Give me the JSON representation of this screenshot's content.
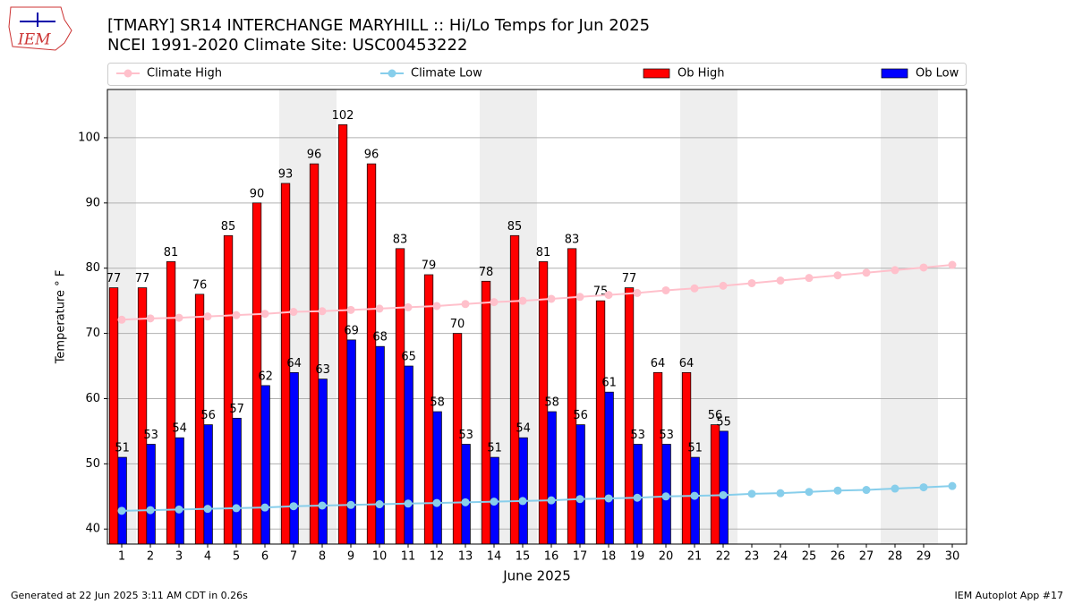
{
  "logo_text": "IEM",
  "chart_data": {
    "type": "bar",
    "title": "[TMARY] SR14 INTERCHANGE MARYHILL  :: Hi/Lo Temps for Jun 2025",
    "subtitle": "NCEI 1991-2020 Climate Site: USC00453222",
    "x_label": "June 2025",
    "y_label": "Temperature ° F",
    "footer_left": "Generated at 22 Jun 2025 3:11 AM CDT in 0.26s",
    "footer_right": "IEM Autoplot App #17",
    "x": [
      1,
      2,
      3,
      4,
      5,
      6,
      7,
      8,
      9,
      10,
      11,
      12,
      13,
      14,
      15,
      16,
      17,
      18,
      19,
      20,
      21,
      22,
      23,
      24,
      25,
      26,
      27,
      28,
      29,
      30
    ],
    "xlim": [
      0.5,
      30.5
    ],
    "xticks": [
      1,
      2,
      3,
      4,
      5,
      6,
      7,
      8,
      9,
      10,
      11,
      12,
      13,
      14,
      15,
      16,
      17,
      18,
      19,
      20,
      21,
      22,
      23,
      24,
      25,
      26,
      27,
      28,
      29,
      30
    ],
    "ylim": [
      37.7,
      107.4
    ],
    "yticks": [
      40,
      50,
      60,
      70,
      80,
      90,
      100
    ],
    "grid": true,
    "legend": "top",
    "shaded_days": [
      1,
      7,
      8,
      14,
      15,
      21,
      22,
      28,
      29
    ],
    "shade_color": "#eeeeee",
    "series": [
      {
        "name": "Climate High",
        "type": "line",
        "color": "pink",
        "values": [
          72.1,
          72.3,
          72.4,
          72.6,
          72.8,
          73.0,
          73.3,
          73.4,
          73.6,
          73.8,
          74.0,
          74.2,
          74.5,
          74.8,
          75.0,
          75.3,
          75.6,
          75.9,
          76.2,
          76.6,
          76.9,
          77.3,
          77.7,
          78.1,
          78.5,
          78.9,
          79.3,
          79.7,
          80.1,
          80.5
        ]
      },
      {
        "name": "Climate Low",
        "type": "line",
        "color": "skyblue",
        "values": [
          42.8,
          42.9,
          43.0,
          43.1,
          43.2,
          43.3,
          43.5,
          43.6,
          43.7,
          43.8,
          43.9,
          44.0,
          44.1,
          44.2,
          44.3,
          44.4,
          44.6,
          44.7,
          44.8,
          45.0,
          45.1,
          45.2,
          45.4,
          45.5,
          45.7,
          45.9,
          46.0,
          46.2,
          46.4,
          46.6
        ]
      },
      {
        "name": "Ob High",
        "type": "bar",
        "color": "#ff0000",
        "values": [
          77,
          77,
          81,
          76,
          85,
          90,
          93,
          96,
          102,
          96,
          83,
          79,
          70,
          78,
          85,
          81,
          83,
          75,
          77,
          64,
          64,
          56,
          null,
          null,
          null,
          null,
          null,
          null,
          null,
          null
        ]
      },
      {
        "name": "Ob Low",
        "type": "bar",
        "color": "#0000ff",
        "values": [
          51,
          53,
          54,
          56,
          57,
          62,
          64,
          63,
          69,
          68,
          65,
          58,
          53,
          51,
          54,
          58,
          56,
          61,
          53,
          53,
          51,
          55,
          null,
          null,
          null,
          null,
          null,
          null,
          null,
          null
        ]
      }
    ]
  }
}
